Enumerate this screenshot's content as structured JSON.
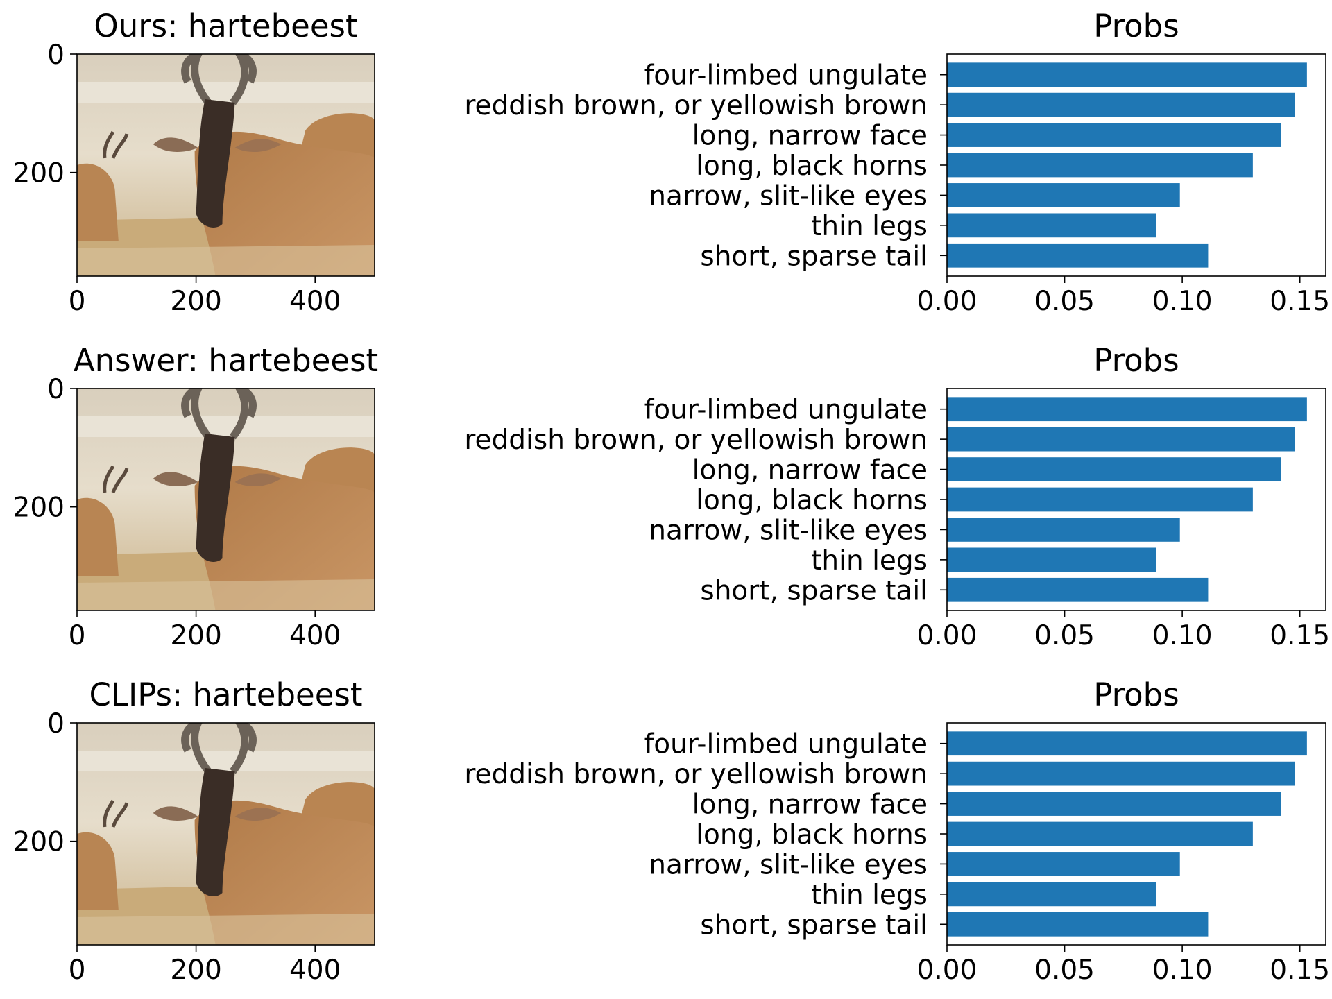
{
  "colors": {
    "bar": "#1f77b4",
    "axis": "#000000",
    "background": "#ffffff"
  },
  "image_axes": {
    "xticks": [
      "0",
      "200",
      "400"
    ],
    "yticks": [
      "0",
      "200"
    ],
    "xlim": [
      0,
      500
    ],
    "ylim": [
      375,
      0
    ]
  },
  "chart_data": [
    {
      "type": "bar",
      "orientation": "horizontal",
      "title": "Probs",
      "image_title": "Ours: hartebeest",
      "categories": [
        "four-limbed ungulate",
        "reddish brown, or yellowish brown",
        "long, narrow face",
        "long, black horns",
        "narrow, slit-like eyes",
        "thin legs",
        "short, sparse tail"
      ],
      "values": [
        0.153,
        0.148,
        0.142,
        0.13,
        0.099,
        0.089,
        0.111
      ],
      "xticks": [
        "0.00",
        "0.05",
        "0.10",
        "0.15"
      ],
      "xlim": [
        0,
        0.161
      ]
    },
    {
      "type": "bar",
      "orientation": "horizontal",
      "title": "Probs",
      "image_title": "Answer: hartebeest",
      "categories": [
        "four-limbed ungulate",
        "reddish brown, or yellowish brown",
        "long, narrow face",
        "long, black horns",
        "narrow, slit-like eyes",
        "thin legs",
        "short, sparse tail"
      ],
      "values": [
        0.153,
        0.148,
        0.142,
        0.13,
        0.099,
        0.089,
        0.111
      ],
      "xticks": [
        "0.00",
        "0.05",
        "0.10",
        "0.15"
      ],
      "xlim": [
        0,
        0.161
      ]
    },
    {
      "type": "bar",
      "orientation": "horizontal",
      "title": "Probs",
      "image_title": "CLIPs: hartebeest",
      "categories": [
        "four-limbed ungulate",
        "reddish brown, or yellowish brown",
        "long, narrow face",
        "long, black horns",
        "narrow, slit-like eyes",
        "thin legs",
        "short, sparse tail"
      ],
      "values": [
        0.153,
        0.148,
        0.142,
        0.13,
        0.099,
        0.089,
        0.111
      ],
      "xticks": [
        "0.00",
        "0.05",
        "0.10",
        "0.15"
      ],
      "xlim": [
        0,
        0.161
      ]
    }
  ]
}
